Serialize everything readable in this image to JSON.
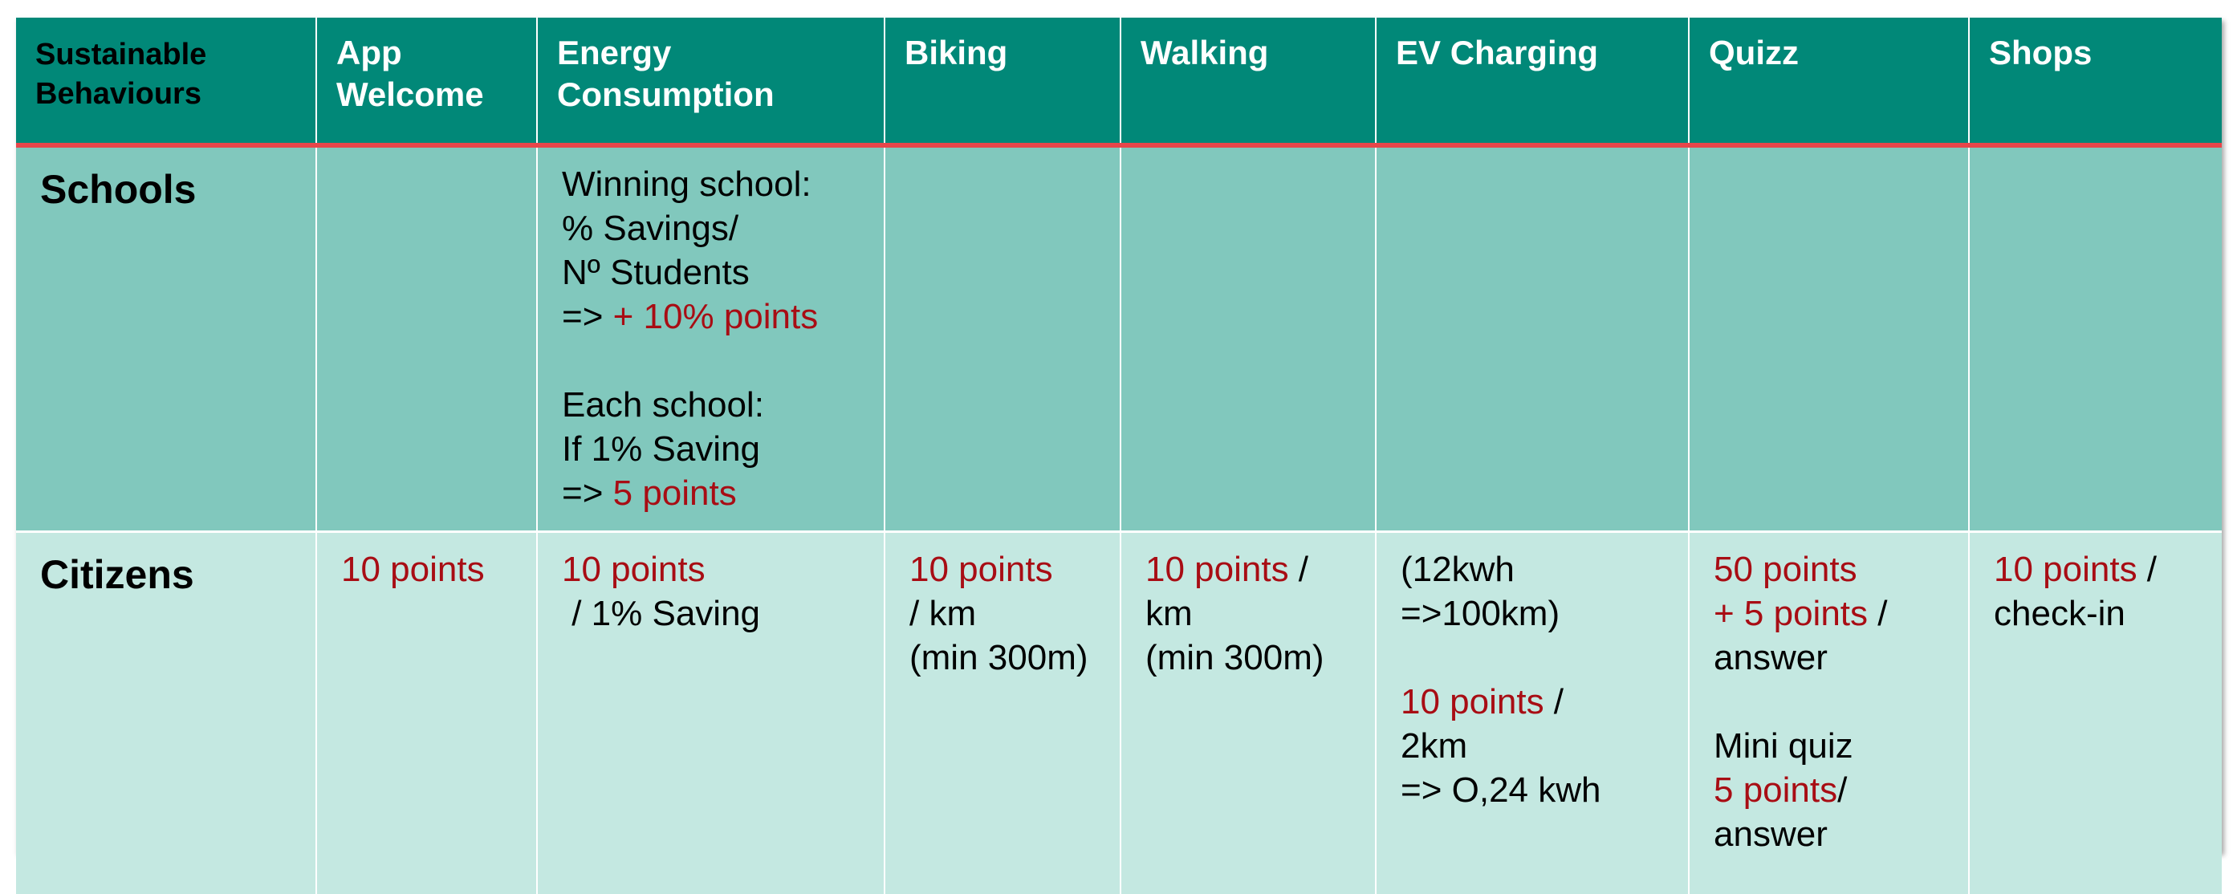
{
  "header": {
    "corner": [
      "Sustainable",
      "Behaviours"
    ],
    "columns": [
      [
        "App",
        "Welcome"
      ],
      [
        "Energy",
        "Consumption"
      ],
      [
        "Biking"
      ],
      [
        "Walking"
      ],
      [
        "EV Charging"
      ],
      [
        "Quizz"
      ],
      [
        "Shops"
      ]
    ]
  },
  "rows": {
    "schools": {
      "label": "Schools",
      "energy": {
        "l1": "Winning school:",
        "l2": "% Savings/",
        "l3": "Nº Students",
        "l4_prefix": "=> ",
        "l4_red": "+ 10% points",
        "l5": "Each school:",
        "l6": "If 1% Saving",
        "l7_prefix": "=> ",
        "l7_red": "5 points"
      }
    },
    "citizens": {
      "label": "Citizens",
      "app_welcome": {
        "red": "10 points"
      },
      "energy": {
        "red": "10 points",
        "l2": " / 1% Saving"
      },
      "biking": {
        "red": "10 points",
        "l2": "/ km",
        "l3": "(min 300m)"
      },
      "walking": {
        "red": "10 points",
        "l1_suffix": " /",
        "l2": "km",
        "l3": "(min 300m)"
      },
      "ev": {
        "l1": "(12kwh",
        "l2": "=>100km)",
        "l3_red": "10 points",
        "l3_suffix": " /",
        "l4": "2km",
        "l5": "=> O,24 kwh"
      },
      "quizz": {
        "l1_red": "50 points",
        "l2_red": "+ 5 points",
        "l2_suffix": " /",
        "l3": "answer",
        "l4": "Mini quiz",
        "l5_red": "5 points",
        "l5_suffix": "/",
        "l6": "answer"
      },
      "shops": {
        "red": "10 points",
        "l1_suffix": " /",
        "l2": "check-in"
      }
    }
  },
  "colors": {
    "header_bg": "#018878",
    "header_rule": "#e8464a",
    "schools_bg": "#81c8bd",
    "citizens_bg": "#c4e8e1",
    "points_red": "#a80d14"
  }
}
